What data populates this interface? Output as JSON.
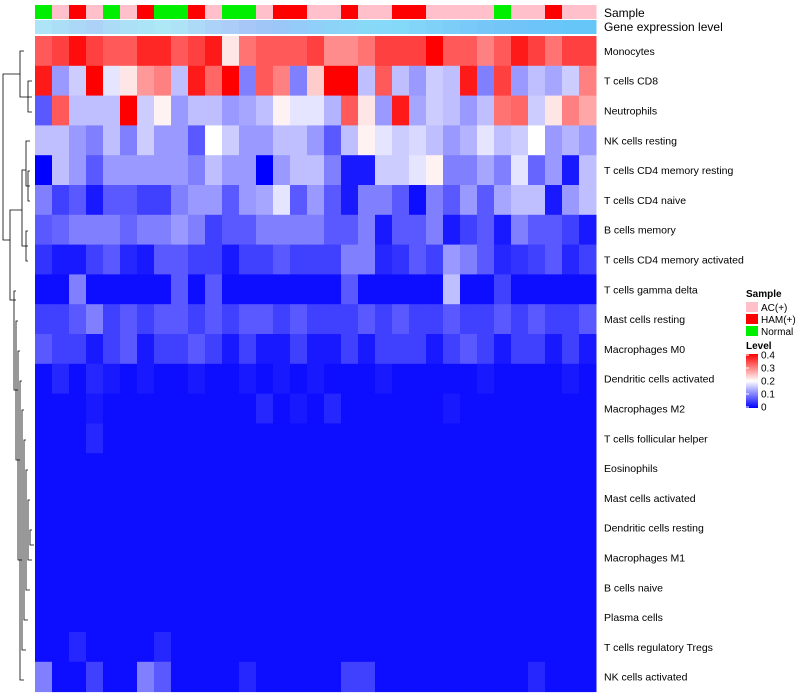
{
  "chart_data": {
    "type": "heatmap",
    "title": "",
    "value_legend": {
      "title": "Level",
      "ticks": [
        "0.4",
        "0.3",
        "0.2",
        "0.1",
        "0"
      ],
      "range": [
        0,
        0.4
      ],
      "colors": {
        "low": "#0000ff",
        "mid": "#ffffff",
        "high": "#ff0000"
      }
    },
    "sample_legend": {
      "title": "Sample",
      "items": [
        {
          "label": "AC(+)",
          "color": "#ffc0cb"
        },
        {
          "label": "HAM(+)",
          "color": "#ff0000"
        },
        {
          "label": "Normal",
          "color": "#00ee00"
        }
      ]
    },
    "annotation_labels": {
      "sample": "Sample",
      "gene": "Gene expression level"
    },
    "sample_groups": [
      "N",
      "A",
      "H",
      "A",
      "N",
      "A",
      "H",
      "N",
      "N",
      "H",
      "A",
      "N",
      "N",
      "A",
      "H",
      "H",
      "A",
      "A",
      "H",
      "A",
      "A",
      "H",
      "H",
      "A",
      "A",
      "A",
      "A",
      "N",
      "A",
      "A",
      "H",
      "A",
      "A"
    ],
    "gene_colors": [
      "#ade4f7",
      "#addef7",
      "#acd8f7",
      "#acd3f7",
      "#acdbf7",
      "#ace0f7",
      "#abe4f7",
      "#aee8f6",
      "#aee2f6",
      "#addaf7",
      "#acd2f7",
      "#abcdf7",
      "#a6c7f7",
      "#a0c5f7",
      "#9ac7f8",
      "#95cbf8",
      "#90cff8",
      "#8dd3f8",
      "#8bd6f8",
      "#88d8f8",
      "#86d9f8",
      "#84d8f8",
      "#82d5f8",
      "#7fd1f8",
      "#7ccdf8",
      "#79caf8",
      "#76c7f8",
      "#73c5f8",
      "#70c4f8",
      "#6dc4f8",
      "#6ac5f8",
      "#67c6f8",
      "#65c7f8"
    ],
    "rows": [
      "Monocytes",
      "T cells CD8",
      "Neutrophils",
      "NK cells resting",
      "T cells CD4 memory resting",
      "T cells CD4 naive",
      "B cells memory",
      "T cells CD4 memory activated",
      "T cells gamma delta",
      "Mast cells resting",
      "Macrophages M0",
      "Dendritic cells activated",
      "Macrophages M2",
      "T cells follicular helper",
      "Eosinophils",
      "Mast cells activated",
      "Dendritic cells resting",
      "Macrophages M1",
      "B cells naive",
      "Plasma cells",
      "T cells regulatory  Tregs",
      "NK cells activated"
    ],
    "values": [
      [
        0.33,
        0.35,
        0.39,
        0.35,
        0.33,
        0.33,
        0.37,
        0.37,
        0.33,
        0.35,
        0.38,
        0.22,
        0.31,
        0.33,
        0.33,
        0.33,
        0.35,
        0.29,
        0.29,
        0.31,
        0.35,
        0.35,
        0.35,
        0.4,
        0.33,
        0.33,
        0.3,
        0.33,
        0.38,
        0.35,
        0.31,
        0.35,
        0.35
      ],
      [
        0.38,
        0.12,
        0.16,
        0.4,
        0.18,
        0.22,
        0.28,
        0.3,
        0.15,
        0.38,
        0.32,
        0.4,
        0.1,
        0.33,
        0.3,
        0.1,
        0.24,
        0.4,
        0.4,
        0.15,
        0.33,
        0.15,
        0.12,
        0.16,
        0.15,
        0.38,
        0.1,
        0.35,
        0.12,
        0.15,
        0.13,
        0.16,
        0.3
      ],
      [
        0.07,
        0.33,
        0.15,
        0.15,
        0.15,
        0.4,
        0.16,
        0.21,
        0.12,
        0.15,
        0.15,
        0.12,
        0.13,
        0.15,
        0.21,
        0.18,
        0.18,
        0.14,
        0.33,
        0.22,
        0.12,
        0.38,
        0.13,
        0.16,
        0.15,
        0.12,
        0.15,
        0.31,
        0.32,
        0.16,
        0.22,
        0.3,
        0.27
      ],
      [
        0.15,
        0.15,
        0.12,
        0.1,
        0.15,
        0.1,
        0.16,
        0.12,
        0.12,
        0.07,
        0.2,
        0.16,
        0.12,
        0.12,
        0.15,
        0.15,
        0.12,
        0.07,
        0.15,
        0.21,
        0.18,
        0.16,
        0.17,
        0.15,
        0.12,
        0.14,
        0.18,
        0.15,
        0.16,
        0.2,
        0.12,
        0.14,
        0.12
      ],
      [
        0.0,
        0.15,
        0.12,
        0.07,
        0.12,
        0.12,
        0.12,
        0.12,
        0.12,
        0.1,
        0.15,
        0.12,
        0.12,
        0.0,
        0.12,
        0.15,
        0.15,
        0.1,
        0.02,
        0.02,
        0.16,
        0.16,
        0.18,
        0.21,
        0.1,
        0.1,
        0.13,
        0.1,
        0.18,
        0.08,
        0.12,
        0.02,
        0.15
      ],
      [
        0.1,
        0.05,
        0.07,
        0.02,
        0.07,
        0.07,
        0.05,
        0.05,
        0.1,
        0.12,
        0.12,
        0.07,
        0.12,
        0.13,
        0.18,
        0.07,
        0.12,
        0.07,
        0.02,
        0.1,
        0.1,
        0.07,
        0.01,
        0.1,
        0.07,
        0.12,
        0.07,
        0.13,
        0.15,
        0.15,
        0.02,
        0.12,
        0.15
      ],
      [
        0.07,
        0.08,
        0.1,
        0.1,
        0.1,
        0.08,
        0.1,
        0.1,
        0.12,
        0.1,
        0.05,
        0.07,
        0.07,
        0.1,
        0.1,
        0.1,
        0.1,
        0.07,
        0.07,
        0.1,
        0.02,
        0.07,
        0.07,
        0.1,
        0.02,
        0.05,
        0.07,
        0.02,
        0.1,
        0.07,
        0.07,
        0.05,
        0.02
      ],
      [
        0.04,
        0.02,
        0.02,
        0.05,
        0.07,
        0.03,
        0.02,
        0.07,
        0.07,
        0.05,
        0.05,
        0.02,
        0.05,
        0.05,
        0.07,
        0.05,
        0.05,
        0.05,
        0.1,
        0.1,
        0.03,
        0.04,
        0.07,
        0.05,
        0.12,
        0.1,
        0.07,
        0.03,
        0.04,
        0.05,
        0.07,
        0.03,
        0.05
      ],
      [
        0.01,
        0.01,
        0.1,
        0.01,
        0.01,
        0.01,
        0.01,
        0.01,
        0.07,
        0.01,
        0.07,
        0.01,
        0.01,
        0.01,
        0.01,
        0.01,
        0.01,
        0.01,
        0.07,
        0.01,
        0.01,
        0.01,
        0.01,
        0.01,
        0.15,
        0.01,
        0.01,
        0.05,
        0.01,
        0.01,
        0.01,
        0.01,
        0.01
      ],
      [
        0.05,
        0.05,
        0.07,
        0.1,
        0.05,
        0.07,
        0.05,
        0.07,
        0.07,
        0.05,
        0.07,
        0.05,
        0.07,
        0.07,
        0.05,
        0.07,
        0.05,
        0.05,
        0.05,
        0.07,
        0.05,
        0.07,
        0.05,
        0.05,
        0.07,
        0.05,
        0.05,
        0.07,
        0.05,
        0.07,
        0.05,
        0.05,
        0.07
      ],
      [
        0.07,
        0.05,
        0.05,
        0.02,
        0.05,
        0.07,
        0.02,
        0.05,
        0.05,
        0.07,
        0.05,
        0.02,
        0.05,
        0.02,
        0.02,
        0.05,
        0.02,
        0.02,
        0.05,
        0.02,
        0.05,
        0.05,
        0.05,
        0.02,
        0.05,
        0.07,
        0.05,
        0.02,
        0.05,
        0.05,
        0.02,
        0.05,
        0.02
      ],
      [
        0.01,
        0.03,
        0.01,
        0.03,
        0.02,
        0.01,
        0.02,
        0.01,
        0.01,
        0.02,
        0.01,
        0.01,
        0.02,
        0.01,
        0.02,
        0.01,
        0.02,
        0.01,
        0.01,
        0.01,
        0.02,
        0.01,
        0.01,
        0.01,
        0.01,
        0.01,
        0.02,
        0.01,
        0.01,
        0.01,
        0.01,
        0.02,
        0.01
      ],
      [
        0.01,
        0.01,
        0.01,
        0.02,
        0.01,
        0.01,
        0.01,
        0.01,
        0.01,
        0.01,
        0.01,
        0.01,
        0.01,
        0.03,
        0.01,
        0.02,
        0.01,
        0.03,
        0.01,
        0.01,
        0.01,
        0.01,
        0.01,
        0.01,
        0.02,
        0.01,
        0.01,
        0.01,
        0.01,
        0.01,
        0.01,
        0.01,
        0.01
      ],
      [
        0.01,
        0.01,
        0.01,
        0.03,
        0.01,
        0.01,
        0.01,
        0.01,
        0.01,
        0.01,
        0.01,
        0.01,
        0.01,
        0.01,
        0.01,
        0.01,
        0.01,
        0.01,
        0.01,
        0.01,
        0.01,
        0.01,
        0.01,
        0.01,
        0.01,
        0.01,
        0.01,
        0.01,
        0.01,
        0.01,
        0.01,
        0.01,
        0.01
      ],
      [
        0.01,
        0.01,
        0.01,
        0.01,
        0.01,
        0.01,
        0.01,
        0.01,
        0.01,
        0.01,
        0.01,
        0.01,
        0.01,
        0.01,
        0.01,
        0.01,
        0.01,
        0.01,
        0.01,
        0.01,
        0.01,
        0.01,
        0.01,
        0.01,
        0.01,
        0.01,
        0.01,
        0.01,
        0.01,
        0.01,
        0.01,
        0.01,
        0.01
      ],
      [
        0.01,
        0.01,
        0.01,
        0.01,
        0.01,
        0.01,
        0.01,
        0.01,
        0.01,
        0.01,
        0.01,
        0.01,
        0.01,
        0.01,
        0.01,
        0.01,
        0.01,
        0.01,
        0.01,
        0.01,
        0.01,
        0.01,
        0.01,
        0.01,
        0.01,
        0.01,
        0.01,
        0.01,
        0.01,
        0.01,
        0.01,
        0.01,
        0.01
      ],
      [
        0.01,
        0.01,
        0.01,
        0.01,
        0.01,
        0.01,
        0.01,
        0.01,
        0.01,
        0.01,
        0.01,
        0.01,
        0.01,
        0.01,
        0.01,
        0.01,
        0.01,
        0.01,
        0.01,
        0.01,
        0.01,
        0.01,
        0.01,
        0.01,
        0.01,
        0.01,
        0.01,
        0.01,
        0.01,
        0.01,
        0.01,
        0.01,
        0.01
      ],
      [
        0.01,
        0.01,
        0.01,
        0.01,
        0.01,
        0.01,
        0.01,
        0.01,
        0.01,
        0.01,
        0.01,
        0.01,
        0.01,
        0.01,
        0.01,
        0.01,
        0.01,
        0.01,
        0.01,
        0.01,
        0.01,
        0.01,
        0.01,
        0.01,
        0.01,
        0.01,
        0.01,
        0.01,
        0.01,
        0.01,
        0.01,
        0.01,
        0.01
      ],
      [
        0.01,
        0.01,
        0.01,
        0.01,
        0.01,
        0.01,
        0.01,
        0.01,
        0.01,
        0.01,
        0.01,
        0.01,
        0.01,
        0.01,
        0.01,
        0.01,
        0.01,
        0.01,
        0.01,
        0.01,
        0.01,
        0.01,
        0.01,
        0.01,
        0.01,
        0.01,
        0.01,
        0.01,
        0.01,
        0.01,
        0.01,
        0.01,
        0.01
      ],
      [
        0.01,
        0.01,
        0.01,
        0.01,
        0.01,
        0.01,
        0.01,
        0.01,
        0.01,
        0.01,
        0.01,
        0.01,
        0.01,
        0.01,
        0.01,
        0.01,
        0.01,
        0.01,
        0.01,
        0.01,
        0.01,
        0.01,
        0.01,
        0.01,
        0.01,
        0.01,
        0.01,
        0.01,
        0.01,
        0.01,
        0.01,
        0.01,
        0.01
      ],
      [
        0.01,
        0.01,
        0.03,
        0.01,
        0.01,
        0.01,
        0.01,
        0.03,
        0.01,
        0.01,
        0.01,
        0.01,
        0.01,
        0.01,
        0.01,
        0.01,
        0.01,
        0.01,
        0.01,
        0.01,
        0.01,
        0.01,
        0.01,
        0.01,
        0.01,
        0.01,
        0.01,
        0.01,
        0.01,
        0.01,
        0.01,
        0.01,
        0.01
      ],
      [
        0.1,
        0.01,
        0.01,
        0.05,
        0.01,
        0.01,
        0.1,
        0.07,
        0.01,
        0.01,
        0.01,
        0.01,
        0.03,
        0.01,
        0.01,
        0.01,
        0.01,
        0.01,
        0.05,
        0.05,
        0.01,
        0.01,
        0.01,
        0.01,
        0.01,
        0.01,
        0.01,
        0.01,
        0.01,
        0.03,
        0.01,
        0.01,
        0.01
      ]
    ]
  }
}
